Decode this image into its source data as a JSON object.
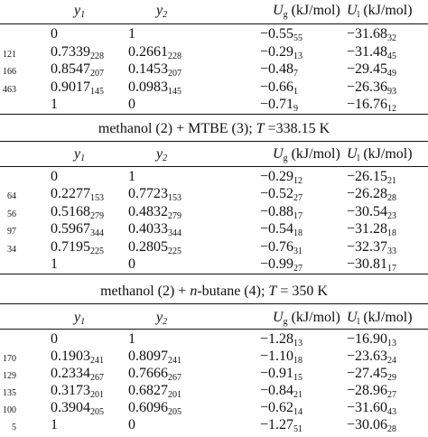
{
  "sections": [
    {
      "title": "",
      "header": {
        "y1": "y",
        "y1_sub": "1",
        "y2": "y",
        "y2_sub": "2",
        "ug": "U",
        "ug_sub": "g",
        "ug_unit": " (kJ/mol)",
        "ul": "U",
        "ul_sub": "l",
        "ul_unit": " (kJ/mol)"
      },
      "rows": [
        {
          "c0": "",
          "y1": "0",
          "y1s": "",
          "y2": "1",
          "y2s": "",
          "ug": "−0.55",
          "ugs": "55",
          "ul": "−31.68",
          "uls": "32"
        },
        {
          "c0": "121",
          "y1": "0.7339",
          "y1s": "228",
          "y2": "0.2661",
          "y2s": "228",
          "ug": "−0.29",
          "ugs": "13",
          "ul": "−31.48",
          "uls": "45"
        },
        {
          "c0": "166",
          "y1": "0.8547",
          "y1s": "207",
          "y2": "0.1453",
          "y2s": "207",
          "ug": "−0.48",
          "ugs": "7",
          "ul": "−29.45",
          "uls": "49"
        },
        {
          "c0": "463",
          "y1": "0.9017",
          "y1s": "145",
          "y2": "0.0983",
          "y2s": "145",
          "ug": "−0.66",
          "ugs": "1",
          "ul": "−26.36",
          "uls": "93"
        },
        {
          "c0": "",
          "y1": "1",
          "y1s": "",
          "y2": "0",
          "y2s": "",
          "ug": "−0.71",
          "ugs": "9",
          "ul": "−16.76",
          "uls": "12"
        }
      ]
    },
    {
      "title": "methanol (2) + MTBE (3); T =338.15 K",
      "header": {
        "y1": "y",
        "y1_sub": "1",
        "y2": "y",
        "y2_sub": "2",
        "ug": "U",
        "ug_sub": "g",
        "ug_unit": " (kJ/mol)",
        "ul": "U",
        "ul_sub": "l",
        "ul_unit": " (kJ/mol)"
      },
      "rows": [
        {
          "c0": "",
          "y1": "0",
          "y1s": "",
          "y2": "1",
          "y2s": "",
          "ug": "−0.29",
          "ugs": "12",
          "ul": "−26.15",
          "uls": "21"
        },
        {
          "c0": "64",
          "y1": "0.2277",
          "y1s": "153",
          "y2": "0.7723",
          "y2s": "153",
          "ug": "−0.52",
          "ugs": "27",
          "ul": "−26.28",
          "uls": "28"
        },
        {
          "c0": "56",
          "y1": "0.5168",
          "y1s": "279",
          "y2": "0.4832",
          "y2s": "279",
          "ug": "−0.88",
          "ugs": "17",
          "ul": "−30.54",
          "uls": "23"
        },
        {
          "c0": "97",
          "y1": "0.5967",
          "y1s": "344",
          "y2": "0.4033",
          "y2s": "344",
          "ug": "−0.54",
          "ugs": "18",
          "ul": "−31.28",
          "uls": "18"
        },
        {
          "c0": "34",
          "y1": "0.7195",
          "y1s": "225",
          "y2": "0.2805",
          "y2s": "225",
          "ug": "−0.76",
          "ugs": "31",
          "ul": "−32.37",
          "uls": "33"
        },
        {
          "c0": "",
          "y1": "1",
          "y1s": "",
          "y2": "0",
          "y2s": "",
          "ug": "−0.99",
          "ugs": "27",
          "ul": "−30.81",
          "uls": "17"
        }
      ]
    },
    {
      "title": "methanol (2) + n-butane (4); T = 350 K",
      "header": {
        "y1": "y",
        "y1_sub": "1",
        "y2": "y",
        "y2_sub": "2",
        "ug": "U",
        "ug_sub": "g",
        "ug_unit": " (kJ/mol)",
        "ul": "U",
        "ul_sub": "l",
        "ul_unit": " (kJ/mol)"
      },
      "rows": [
        {
          "c0": "",
          "y1": "0",
          "y1s": "",
          "y2": "1",
          "y2s": "",
          "ug": "−1.28",
          "ugs": "13",
          "ul": "−16.90",
          "uls": "13"
        },
        {
          "c0": "170",
          "y1": "0.1903",
          "y1s": "241",
          "y2": "0.8097",
          "y2s": "241",
          "ug": "−1.10",
          "ugs": "18",
          "ul": "−23.63",
          "uls": "24"
        },
        {
          "c0": "129",
          "y1": "0.2334",
          "y1s": "267",
          "y2": "0.7666",
          "y2s": "267",
          "ug": "−0.91",
          "ugs": "15",
          "ul": "−27.45",
          "uls": "29"
        },
        {
          "c0": "135",
          "y1": "0.3173",
          "y1s": "201",
          "y2": "0.6827",
          "y2s": "201",
          "ug": "−0.84",
          "ugs": "21",
          "ul": "−28.96",
          "uls": "27"
        },
        {
          "c0": "100",
          "y1": "0.3904",
          "y1s": "205",
          "y2": "0.6096",
          "y2s": "205",
          "ug": "−0.62",
          "ugs": "14",
          "ul": "−31.60",
          "uls": "43"
        },
        {
          "c0": "5",
          "y1": "1",
          "y1s": "",
          "y2": "0",
          "y2s": "",
          "ug": "−1.27",
          "ugs": "51",
          "ul": "−30.06",
          "uls": "28"
        }
      ]
    }
  ]
}
